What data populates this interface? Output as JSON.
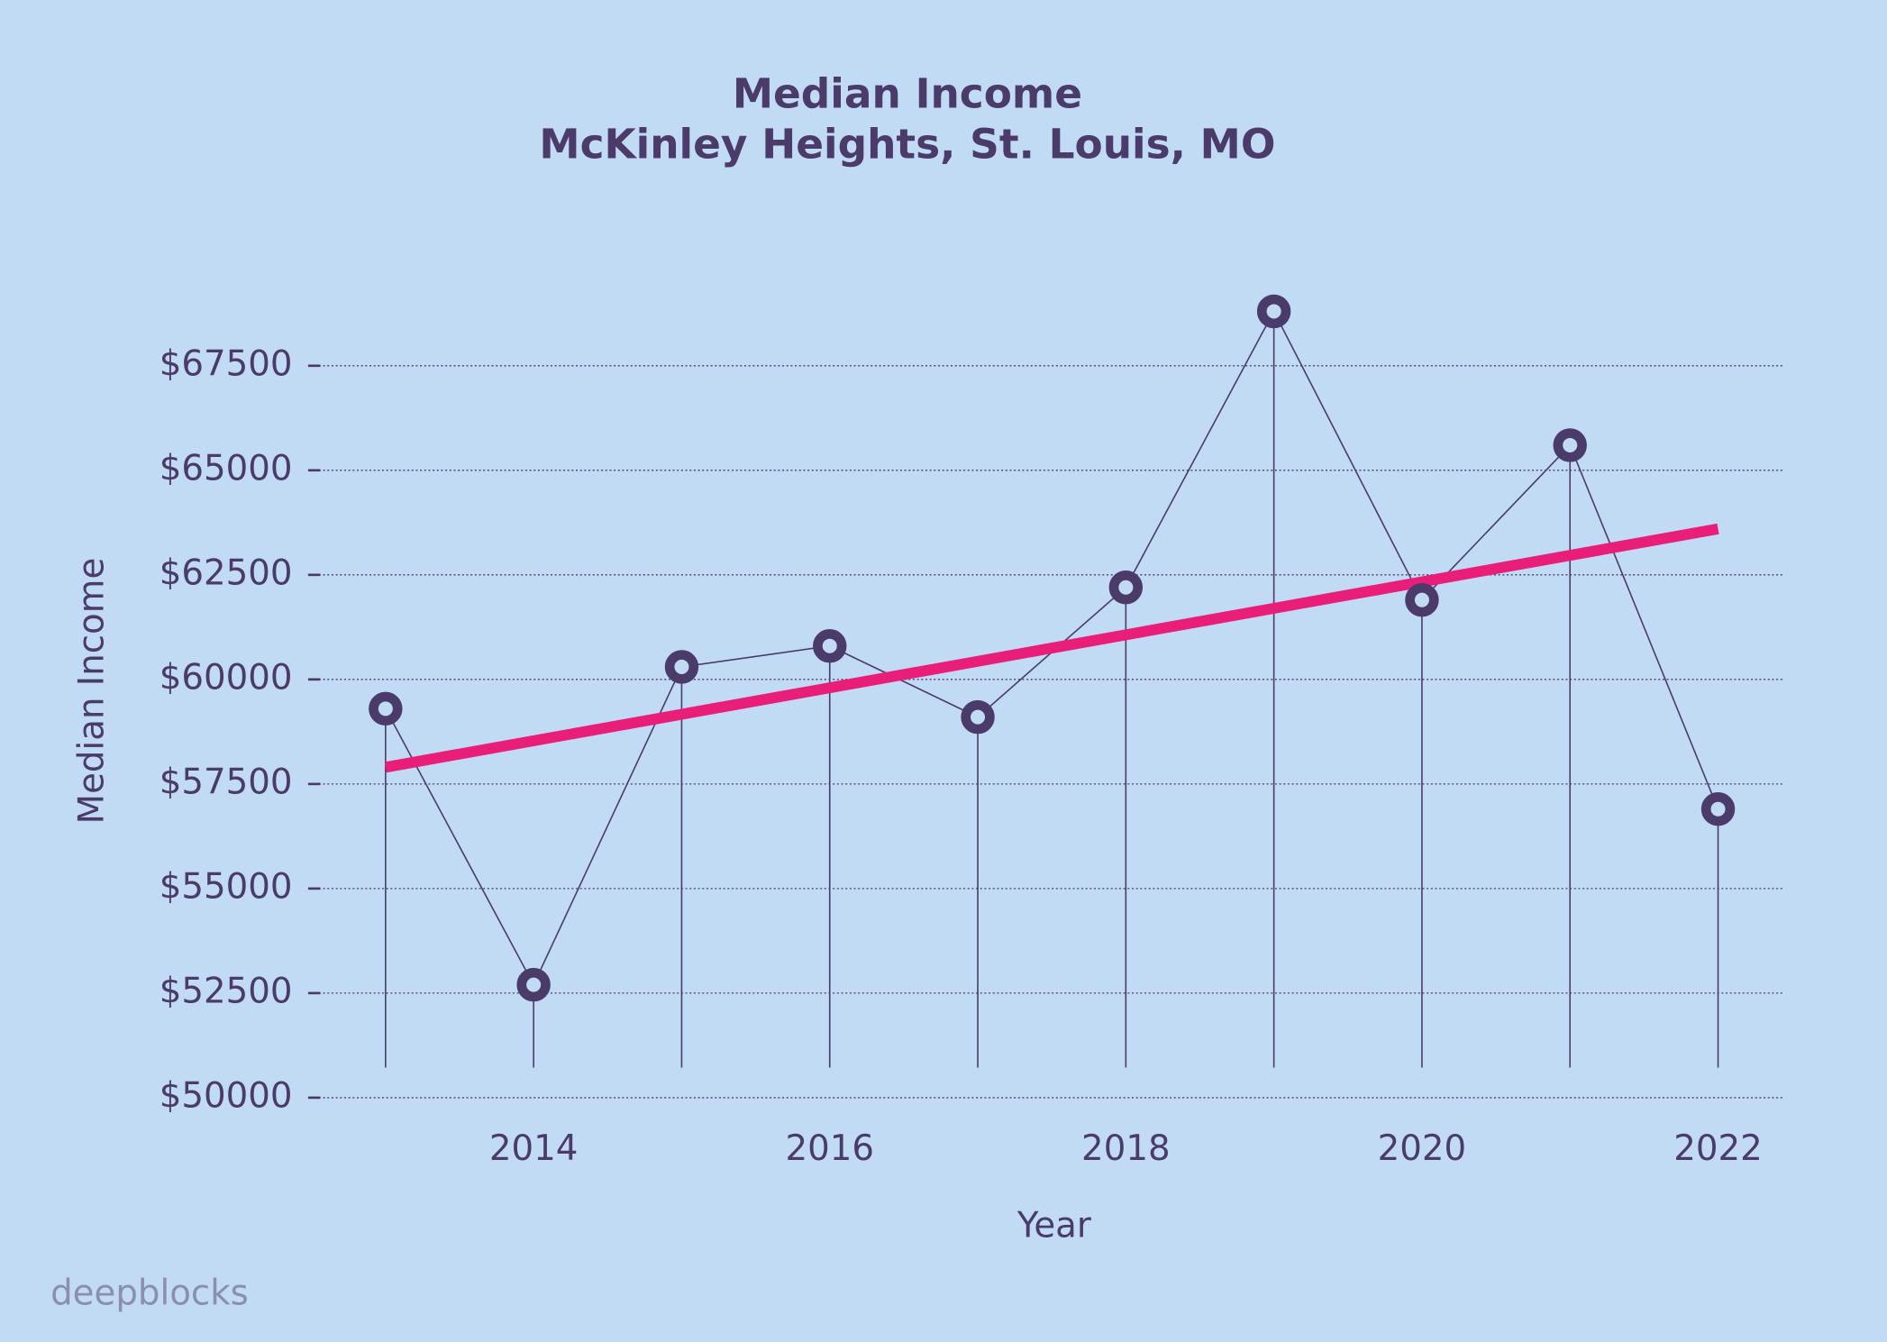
{
  "chart_data": {
    "type": "line",
    "title": "Median Income",
    "subtitle": "McKinley Heights, St. Louis, MO",
    "x_label": "Year",
    "y_label": "Median Income",
    "watermark": "deepblocks",
    "x": [
      2013,
      2014,
      2015,
      2016,
      2017,
      2018,
      2019,
      2020,
      2021,
      2022
    ],
    "values": [
      59300,
      52700,
      60300,
      60800,
      59100,
      62200,
      68800,
      61900,
      65600,
      56900
    ],
    "color": "#4a3b6b",
    "trend": {
      "x": [
        2013,
        2022
      ],
      "values": [
        57900,
        63600
      ],
      "color": "#e91e78"
    },
    "xlim": [
      2012.55,
      2022.45
    ],
    "xticks": [
      2014,
      2016,
      2018,
      2020,
      2022
    ],
    "ylim": [
      50000,
      70000
    ],
    "yticks": [
      {
        "value": 50000,
        "label": "$50000"
      },
      {
        "value": 52500,
        "label": "$52500"
      },
      {
        "value": 55000,
        "label": "$55000"
      },
      {
        "value": 57500,
        "label": "$57500"
      },
      {
        "value": 60000,
        "label": "$60000"
      },
      {
        "value": 62500,
        "label": "$62500"
      },
      {
        "value": 65000,
        "label": "$65000"
      },
      {
        "value": 67500,
        "label": "$67500"
      }
    ],
    "grid": true
  }
}
